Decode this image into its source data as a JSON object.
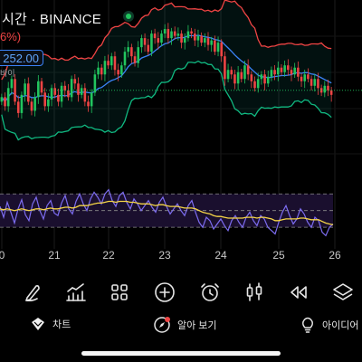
{
  "header": {
    "title": "시간 · BINANCE",
    "change_pct": "6%)",
    "price_tag": "252.00",
    "price_sub": "바이"
  },
  "colors": {
    "bg": "#000000",
    "up": "#22c55e",
    "down": "#ef4444",
    "bb_upper": "#ef4444",
    "bb_lower": "#10b981",
    "bb_mid": "#3b82f6",
    "rsi": "#7c6cf0",
    "rsi_ma": "#f5d547",
    "rsi_band": "#1a0f2e"
  },
  "chart_data": [
    {
      "type": "candlestick",
      "title": "",
      "x_ticks": [
        "0",
        "21",
        "22",
        "23",
        "24",
        "25",
        "26"
      ],
      "overlays": [
        "bollinger-upper",
        "bollinger-middle",
        "bollinger-lower",
        "current-price-line"
      ],
      "close_series": [
        0.62,
        0.58,
        0.66,
        0.7,
        0.6,
        0.55,
        0.63,
        0.68,
        0.6,
        0.56,
        0.62,
        0.69,
        0.64,
        0.58,
        0.61,
        0.66,
        0.63,
        0.6,
        0.67,
        0.65,
        0.62,
        0.7,
        0.68,
        0.63,
        0.66,
        0.6,
        0.58,
        0.64,
        0.72,
        0.75,
        0.72,
        0.78,
        0.76,
        0.8,
        0.74,
        0.72,
        0.76,
        0.82,
        0.84,
        0.8,
        0.77,
        0.84,
        0.88,
        0.85,
        0.82,
        0.9,
        0.88,
        0.86,
        0.9,
        0.92,
        0.88,
        0.91,
        0.89,
        0.9,
        0.86,
        0.88,
        0.91,
        0.9,
        0.87,
        0.89,
        0.86,
        0.88,
        0.85,
        0.87,
        0.82,
        0.86,
        0.8,
        0.7,
        0.74,
        0.72,
        0.68,
        0.73,
        0.7,
        0.76,
        0.72,
        0.69,
        0.66,
        0.7,
        0.72,
        0.68,
        0.71,
        0.74,
        0.72,
        0.75,
        0.73,
        0.76,
        0.74,
        0.72,
        0.75,
        0.71,
        0.69,
        0.72,
        0.7,
        0.67,
        0.7,
        0.66,
        0.64,
        0.67,
        0.65,
        0.63
      ]
    },
    {
      "type": "line",
      "title": "",
      "series": [
        {
          "name": "",
          "values": [
            55,
            42,
            60,
            48,
            35,
            52,
            63,
            45,
            38,
            58,
            66,
            50,
            40,
            56,
            62,
            47,
            44,
            59,
            68,
            52,
            46,
            61,
            70,
            58,
            50,
            64,
            72,
            66,
            58,
            70,
            75,
            62,
            55,
            68,
            72,
            60,
            52,
            64,
            58,
            50,
            56,
            62,
            54,
            48,
            60,
            66,
            55,
            46,
            52,
            58,
            50,
            44,
            56,
            62,
            48,
            36,
            30,
            42,
            38,
            28,
            34,
            40,
            32,
            26,
            38,
            44,
            36,
            30,
            42,
            48,
            38,
            32,
            44,
            40,
            30,
            26,
            22,
            36,
            48,
            56,
            44,
            34,
            40,
            52,
            46,
            36,
            30,
            42,
            38,
            24,
            20,
            30,
            34
          ]
        },
        {
          "name": "",
          "values": [
            52,
            51,
            52,
            51,
            50,
            51,
            52,
            51,
            50,
            51,
            52,
            52,
            51,
            52,
            53,
            52,
            52,
            53,
            54,
            54,
            53,
            54,
            56,
            56,
            56,
            57,
            58,
            59,
            59,
            60,
            61,
            61,
            60,
            61,
            61,
            61,
            60,
            60,
            59,
            58,
            58,
            58,
            57,
            56,
            57,
            57,
            56,
            55,
            55,
            55,
            54,
            53,
            53,
            53,
            52,
            50,
            48,
            47,
            46,
            44,
            43,
            43,
            42,
            41,
            41,
            41,
            41,
            41,
            42,
            42,
            42,
            41,
            42,
            42,
            41,
            40,
            38,
            38,
            39,
            40,
            40,
            40,
            40,
            41,
            41,
            40,
            39,
            39,
            39,
            37,
            35,
            34,
            33
          ]
        }
      ],
      "levels": [
        70,
        50,
        30
      ],
      "x_ticks": [
        "0",
        "21",
        "22",
        "23",
        "24",
        "25",
        "26"
      ]
    }
  ],
  "toolbar": {
    "tools": [
      {
        "name": "draw-tool",
        "icon": "pen-icon"
      },
      {
        "name": "indicators",
        "icon": "indicator-chart-icon"
      },
      {
        "name": "layouts",
        "icon": "grid-icon"
      },
      {
        "name": "add",
        "icon": "plus-circle-icon"
      },
      {
        "name": "alarm",
        "icon": "alarm-clock-icon"
      },
      {
        "name": "chart-type",
        "icon": "candles-icon"
      },
      {
        "name": "replay",
        "icon": "rewind-icon"
      },
      {
        "name": "layers",
        "icon": "layers-icon"
      }
    ]
  },
  "bottom_nav": {
    "chart": "차트",
    "alerts": "알아 보기",
    "ideas": "아이디어"
  }
}
